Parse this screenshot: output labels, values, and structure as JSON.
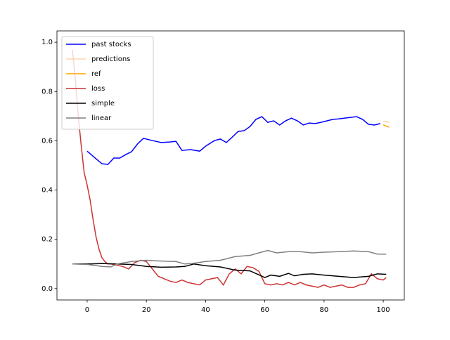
{
  "chart_data": {
    "type": "line",
    "legend": "upper left",
    "xlim": [
      -10.2,
      107.1
    ],
    "ylim": [
      -0.046,
      1.046
    ],
    "xticks": [
      0,
      20,
      40,
      60,
      80,
      100
    ],
    "yticks": [
      {
        "value": 0.0,
        "label": "0.0"
      },
      0.2,
      0.4,
      0.6,
      0.8,
      {
        "value": 1.0,
        "label": "1.0"
      }
    ],
    "series": [
      {
        "name": "past stocks",
        "color": "#0000ff",
        "x": [
          0,
          3,
          5,
          7,
          9,
          11,
          13,
          15,
          17,
          19,
          22,
          25,
          28,
          30,
          32,
          35,
          38,
          40,
          43,
          45,
          47,
          49,
          51,
          53,
          55,
          57,
          59,
          61,
          63,
          65,
          67,
          69,
          71,
          73,
          75,
          77,
          79,
          81,
          83,
          85,
          87,
          89,
          91,
          93,
          95,
          97,
          99
        ],
        "values": [
          0.558,
          0.527,
          0.507,
          0.504,
          0.53,
          0.53,
          0.544,
          0.556,
          0.587,
          0.61,
          0.601,
          0.593,
          0.595,
          0.598,
          0.561,
          0.564,
          0.558,
          0.578,
          0.601,
          0.607,
          0.593,
          0.615,
          0.638,
          0.641,
          0.658,
          0.687,
          0.698,
          0.675,
          0.681,
          0.664,
          0.681,
          0.692,
          0.681,
          0.664,
          0.672,
          0.67,
          0.675,
          0.681,
          0.687,
          0.689,
          0.692,
          0.695,
          0.698,
          0.687,
          0.667,
          0.664,
          0.67
        ]
      },
      {
        "name": "predictions",
        "color": "#ffd3b0",
        "x": [
          100,
          102
        ],
        "values": [
          0.68,
          0.675
        ]
      },
      {
        "name": "ref",
        "color": "#ffa500",
        "x": [
          100,
          102
        ],
        "values": [
          0.665,
          0.655
        ]
      },
      {
        "name": "loss",
        "color": "#cc3333",
        "x": [
          -5,
          -4,
          -3,
          -2,
          -1,
          0,
          1,
          2,
          3,
          4,
          5,
          6,
          7,
          8,
          10,
          12,
          14,
          16,
          18,
          20,
          22,
          24,
          26,
          28,
          30,
          32,
          34,
          36,
          38,
          40,
          42,
          44,
          46,
          48,
          50,
          52,
          54,
          56,
          58,
          60,
          62,
          64,
          66,
          68,
          70,
          72,
          74,
          76,
          78,
          80,
          82,
          84,
          86,
          88,
          90,
          92,
          94,
          96,
          98,
          100,
          101
        ],
        "values": [
          0.97,
          0.85,
          0.7,
          0.58,
          0.47,
          0.42,
          0.36,
          0.28,
          0.21,
          0.16,
          0.125,
          0.11,
          0.1,
          0.1,
          0.095,
          0.09,
          0.08,
          0.105,
          0.115,
          0.11,
          0.08,
          0.05,
          0.04,
          0.03,
          0.025,
          0.035,
          0.025,
          0.02,
          0.015,
          0.035,
          0.04,
          0.045,
          0.015,
          0.06,
          0.08,
          0.06,
          0.09,
          0.085,
          0.07,
          0.02,
          0.015,
          0.02,
          0.015,
          0.025,
          0.015,
          0.025,
          0.015,
          0.01,
          0.005,
          0.015,
          0.005,
          0.01,
          0.015,
          0.005,
          0.005,
          0.015,
          0.02,
          0.06,
          0.04,
          0.035,
          0.045
        ]
      },
      {
        "name": "simple",
        "color": "#000000",
        "x": [
          -5,
          0,
          5,
          10,
          15,
          20,
          25,
          30,
          33,
          36,
          40,
          45,
          50,
          55,
          60,
          62,
          65,
          68,
          70,
          73,
          76,
          80,
          85,
          90,
          95,
          98,
          101
        ],
        "values": [
          0.1,
          0.1,
          0.102,
          0.1,
          0.098,
          0.09,
          0.087,
          0.088,
          0.09,
          0.1,
          0.093,
          0.088,
          0.075,
          0.072,
          0.045,
          0.055,
          0.05,
          0.062,
          0.052,
          0.058,
          0.06,
          0.055,
          0.05,
          0.045,
          0.05,
          0.06,
          0.058
        ]
      },
      {
        "name": "linear",
        "color": "#808080",
        "x": [
          -5,
          0,
          5,
          8,
          10,
          15,
          20,
          25,
          30,
          33,
          36,
          40,
          45,
          50,
          55,
          58,
          61,
          64,
          68,
          72,
          76,
          80,
          85,
          90,
          95,
          98,
          101
        ],
        "values": [
          0.1,
          0.098,
          0.09,
          0.088,
          0.1,
          0.11,
          0.115,
          0.112,
          0.11,
          0.1,
          0.103,
          0.11,
          0.115,
          0.13,
          0.135,
          0.145,
          0.155,
          0.145,
          0.15,
          0.15,
          0.145,
          0.148,
          0.15,
          0.153,
          0.15,
          0.14,
          0.14
        ]
      }
    ]
  }
}
